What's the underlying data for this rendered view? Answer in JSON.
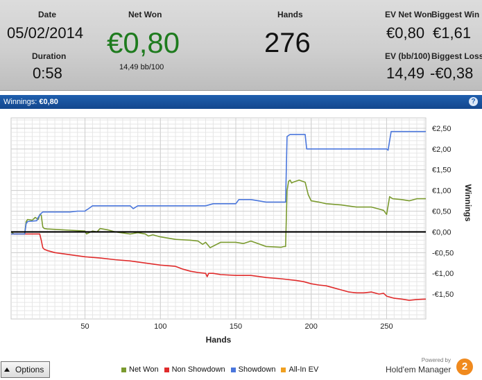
{
  "header": {
    "date_label": "Date",
    "date_value": "05/02/2014",
    "duration_label": "Duration",
    "duration_value": "0:58",
    "net_won_label": "Net Won",
    "net_won_value": "€0,80",
    "net_won_bb": "14,49 bb/100",
    "hands_label": "Hands",
    "hands_value": "276",
    "ev_net_won_label": "EV Net Won",
    "ev_net_won_value": "€0,80",
    "biggest_win_label": "Biggest Win",
    "biggest_win_value": "€1,61",
    "ev_bb_label": "EV (bb/100)",
    "ev_bb_value": "14,49",
    "biggest_loss_label": "Biggest Loss",
    "biggest_loss_value": "-€0,38",
    "net_won_color": "#1e7b1e"
  },
  "titlebar": {
    "label": "Winnings:",
    "value": "€0,80",
    "help_icon": "?"
  },
  "chart_data": {
    "type": "line",
    "xlabel": "Hands",
    "ylabel": "Winnings",
    "xlim": [
      1,
      276
    ],
    "ylim": [
      -2.1,
      2.75
    ],
    "x_ticks": [
      50,
      100,
      150,
      200,
      250
    ],
    "x_tick_labels": [
      "50",
      "100",
      "150",
      "200",
      "250"
    ],
    "y_ticks": [
      2.5,
      2.0,
      1.5,
      1.0,
      0.5,
      0.0,
      -0.5,
      -1.0,
      -1.5
    ],
    "y_tick_labels": [
      "€2,50",
      "€2,00",
      "€1,50",
      "€1,00",
      "€0,50",
      "€0,00",
      "-€0,50",
      "-€1,00",
      "-€1,50"
    ],
    "grid": true,
    "zero_line": true,
    "legend_position": "bottom",
    "series": [
      {
        "name": "Net Won",
        "color": "#7a9a2e",
        "x": [
          1,
          2,
          3,
          10,
          11,
          12,
          15,
          17,
          19,
          20,
          21,
          22,
          23,
          25,
          30,
          40,
          50,
          51,
          55,
          58,
          60,
          65,
          70,
          80,
          85,
          90,
          92,
          95,
          100,
          110,
          120,
          125,
          128,
          130,
          133,
          140,
          150,
          155,
          160,
          170,
          180,
          182,
          183,
          184,
          185,
          186,
          187,
          188,
          192,
          196,
          198,
          200,
          205,
          210,
          220,
          230,
          240,
          245,
          248,
          250,
          252,
          254,
          260,
          265,
          270,
          276
        ],
        "y": [
          0.0,
          -0.03,
          -0.05,
          -0.05,
          0.25,
          0.3,
          0.28,
          0.35,
          0.3,
          0.42,
          0.4,
          0.12,
          0.08,
          0.07,
          0.06,
          0.04,
          0.02,
          -0.05,
          0.02,
          0.0,
          0.08,
          0.05,
          0.0,
          -0.05,
          -0.02,
          -0.05,
          -0.1,
          -0.07,
          -0.12,
          -0.18,
          -0.2,
          -0.22,
          -0.3,
          -0.25,
          -0.38,
          -0.25,
          -0.25,
          -0.28,
          -0.22,
          -0.35,
          -0.37,
          -0.35,
          -0.35,
          1.0,
          1.22,
          1.25,
          1.18,
          1.2,
          1.25,
          1.2,
          0.9,
          0.75,
          0.72,
          0.68,
          0.65,
          0.6,
          0.6,
          0.55,
          0.52,
          0.42,
          0.85,
          0.8,
          0.78,
          0.75,
          0.8,
          0.8
        ]
      },
      {
        "name": "Non Showdown",
        "color": "#e02b2b",
        "x": [
          1,
          10,
          20,
          21,
          22,
          23,
          25,
          30,
          40,
          50,
          60,
          70,
          80,
          90,
          100,
          110,
          115,
          120,
          125,
          130,
          131,
          132,
          135,
          140,
          150,
          160,
          170,
          180,
          190,
          195,
          200,
          205,
          210,
          215,
          220,
          225,
          230,
          235,
          240,
          245,
          248,
          250,
          255,
          260,
          265,
          270,
          276
        ],
        "y": [
          -0.05,
          -0.05,
          -0.05,
          -0.2,
          -0.38,
          -0.42,
          -0.45,
          -0.5,
          -0.55,
          -0.6,
          -0.63,
          -0.67,
          -0.7,
          -0.75,
          -0.8,
          -0.83,
          -0.9,
          -0.95,
          -0.98,
          -1.0,
          -1.08,
          -1.0,
          -1.0,
          -1.03,
          -1.05,
          -1.05,
          -1.1,
          -1.13,
          -1.17,
          -1.2,
          -1.25,
          -1.28,
          -1.3,
          -1.35,
          -1.4,
          -1.45,
          -1.47,
          -1.47,
          -1.45,
          -1.5,
          -1.48,
          -1.55,
          -1.6,
          -1.62,
          -1.65,
          -1.63,
          -1.62
        ]
      },
      {
        "name": "Showdown",
        "color": "#4a76dc",
        "x": [
          1,
          10,
          11,
          12,
          18,
          19,
          20,
          21,
          22,
          40,
          45,
          50,
          51,
          52,
          55,
          80,
          82,
          85,
          100,
          130,
          135,
          150,
          152,
          160,
          165,
          170,
          180,
          181,
          183,
          184,
          186,
          190,
          195,
          196,
          197,
          200,
          230,
          250,
          251,
          252,
          253,
          260,
          276
        ],
        "y": [
          -0.05,
          -0.05,
          0.2,
          0.25,
          0.27,
          0.35,
          0.4,
          0.45,
          0.48,
          0.48,
          0.5,
          0.5,
          0.53,
          0.55,
          0.63,
          0.63,
          0.56,
          0.63,
          0.63,
          0.63,
          0.68,
          0.68,
          0.78,
          0.78,
          0.75,
          0.72,
          0.72,
          0.72,
          0.72,
          2.3,
          2.35,
          2.35,
          2.35,
          2.35,
          2.0,
          2.0,
          2.0,
          2.0,
          1.97,
          2.2,
          2.42,
          2.42,
          2.42
        ]
      },
      {
        "name": "All-In EV",
        "color": "#f0a020",
        "x": [],
        "y": []
      }
    ]
  },
  "footer": {
    "options_label": "Options",
    "powered_by": "Powered by",
    "brand_name": "Hold'em Manager",
    "brand_logo_digit": "2"
  }
}
